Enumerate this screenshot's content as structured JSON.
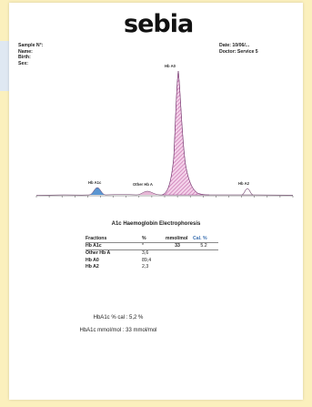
{
  "header": {
    "logo": "sebia",
    "patient": {
      "sample_label": "Sample N°:",
      "name_label": "Name:",
      "birth_label": "Birth:",
      "sex_label": "Sex:"
    },
    "date": "Date: 10/06/...",
    "doctor": "Doctor: Service 5"
  },
  "electropherogram": {
    "peaks": [
      {
        "name": "Hb A0",
        "percent": 89.4
      },
      {
        "name": "Hb A1c",
        "percent": null
      },
      {
        "name": "Other Hb A",
        "percent": 3.6
      },
      {
        "name": "Hb A2",
        "percent": 2.3
      }
    ],
    "colors": {
      "a0_fill": "#c873b0",
      "a1c_fill": "#3d83c9",
      "other_fill": "#e6b8d6",
      "line": "#6b3a67"
    }
  },
  "results": {
    "title": "A1c Haemoglobin Electrophoresis",
    "columns": [
      "Fractions",
      "%",
      "mmol/mol",
      "Cal. %"
    ],
    "rows": [
      {
        "fraction": "Hb A1c",
        "pct": "*",
        "mmol": "33",
        "cal": "5.2"
      },
      {
        "fraction": "Other Hb A",
        "pct": "3,6",
        "mmol": "",
        "cal": ""
      },
      {
        "fraction": "Hb A0",
        "pct": "89,4",
        "mmol": "",
        "cal": ""
      },
      {
        "fraction": "Hb A2",
        "pct": "2,3",
        "mmol": "",
        "cal": ""
      }
    ],
    "summary_cal": "HbA1c % cal : 5,2 %",
    "summary_mmol": "HbA1c mmol/mol : 33 mmol/mol"
  }
}
